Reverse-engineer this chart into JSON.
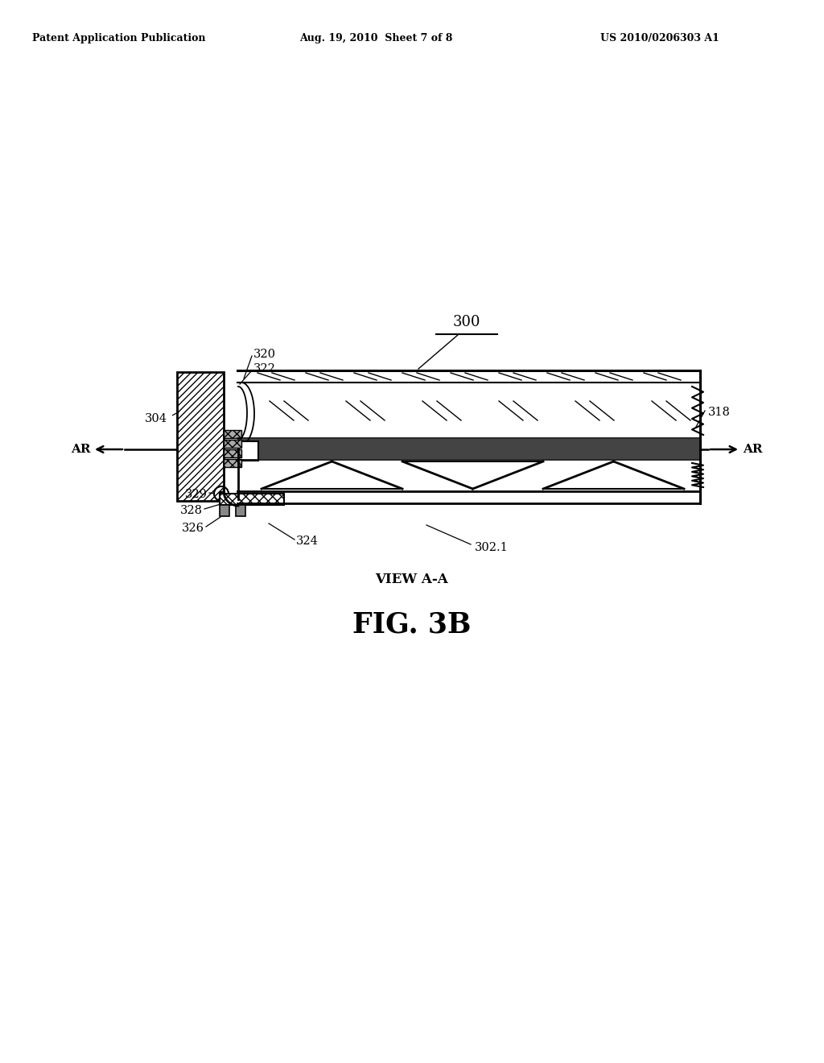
{
  "bg_color": "#ffffff",
  "header_left": "Patent Application Publication",
  "header_center": "Aug. 19, 2010  Sheet 7 of 8",
  "header_right": "US 2010/0206303 A1",
  "fig_label": "FIG. 3B",
  "view_label": "VIEW A-A",
  "diagram_label": "300"
}
